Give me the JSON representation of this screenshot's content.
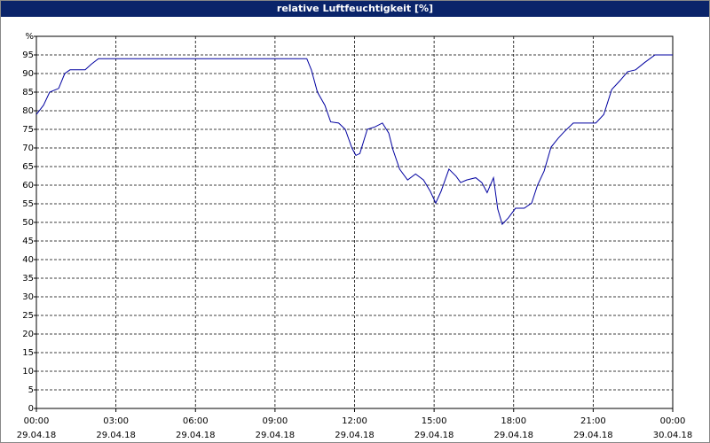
{
  "chart_data": {
    "type": "line",
    "title": "relative Luftfeuchtigkeit [%]",
    "x": [
      0,
      0.27,
      0.5,
      0.84,
      1.07,
      1.27,
      1.84,
      2.07,
      2.34,
      10.2,
      10.37,
      10.6,
      10.88,
      11.1,
      11.4,
      11.65,
      11.9,
      12.05,
      12.2,
      12.48,
      12.78,
      13.05,
      13.29,
      13.45,
      13.7,
      14,
      14.3,
      14.6,
      14.86,
      15.06,
      15.26,
      15.56,
      15.83,
      16,
      16.23,
      16.57,
      16.8,
      17,
      17.24,
      17.4,
      17.57,
      17.8,
      18.07,
      18.4,
      18.68,
      18.9,
      19.15,
      19.41,
      19.68,
      19.9,
      20.25,
      21.1,
      21.4,
      21.7,
      22,
      22.3,
      22.6,
      22.93,
      23.33,
      24
    ],
    "series": [
      {
        "name": "relative Luftfeuchtigkeit",
        "color": "#0000a0",
        "values": [
          79,
          81.5,
          85,
          86,
          90,
          91,
          91,
          92.5,
          94,
          94,
          91,
          85,
          81.5,
          77,
          76.7,
          75,
          70,
          68,
          68.5,
          75,
          75.7,
          76.7,
          74,
          69.5,
          64.3,
          61.4,
          63,
          61.4,
          58.3,
          55.2,
          58.3,
          64.3,
          62.4,
          60.7,
          61.4,
          62,
          60.7,
          58,
          62,
          53.6,
          49.5,
          51.2,
          53.8,
          53.8,
          55.2,
          60,
          63.8,
          70.2,
          72.6,
          74.3,
          76.7,
          76.7,
          79,
          85.7,
          88,
          90.5,
          91,
          92.9,
          95,
          95
        ]
      }
    ],
    "xlim": [
      0,
      24
    ],
    "xticks": [
      {
        "value": 0,
        "label": "00:00",
        "date": "29.04.18"
      },
      {
        "value": 3,
        "label": "03:00",
        "date": "29.04.18"
      },
      {
        "value": 6,
        "label": "06:00",
        "date": "29.04.18"
      },
      {
        "value": 9,
        "label": "09:00",
        "date": "29.04.18"
      },
      {
        "value": 12,
        "label": "12:00",
        "date": "29.04.18"
      },
      {
        "value": 15,
        "label": "15:00",
        "date": "29.04.18"
      },
      {
        "value": 18,
        "label": "18:00",
        "date": "29.04.18"
      },
      {
        "value": 21,
        "label": "21:00",
        "date": "29.04.18"
      },
      {
        "value": 24,
        "label": "00:00",
        "date": "30.04.18"
      }
    ],
    "ylim": [
      0,
      100
    ],
    "yticks": [
      0,
      5,
      10,
      15,
      20,
      25,
      30,
      35,
      40,
      45,
      50,
      55,
      60,
      65,
      70,
      75,
      80,
      85,
      90,
      95,
      {
        "value": 100,
        "label": "%"
      }
    ],
    "grid": true
  }
}
